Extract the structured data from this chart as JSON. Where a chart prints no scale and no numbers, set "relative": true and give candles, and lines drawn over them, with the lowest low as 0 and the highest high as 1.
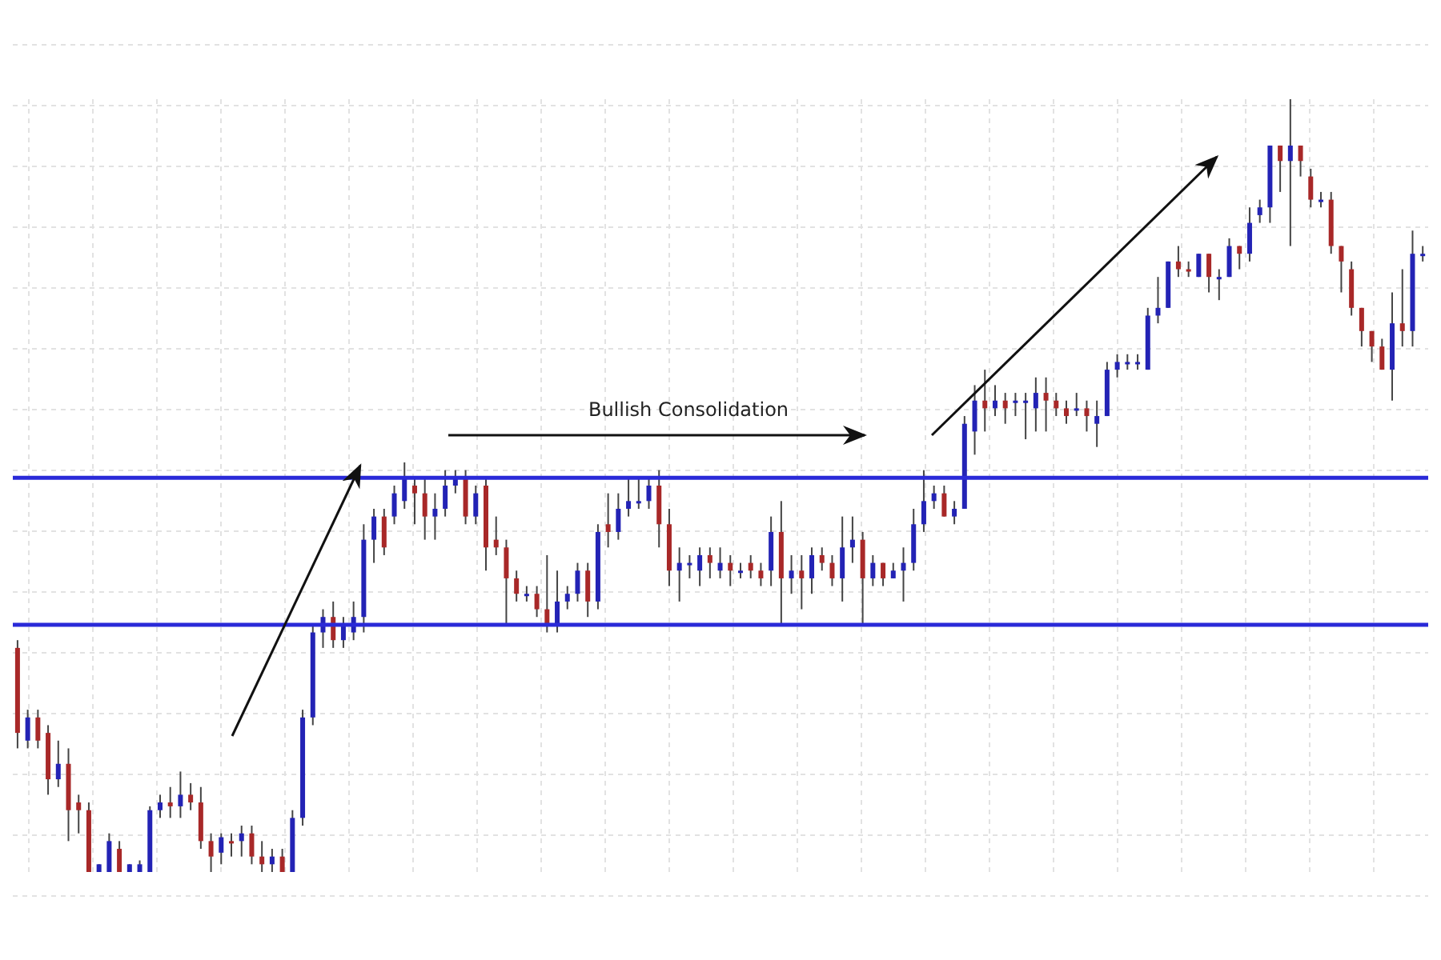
{
  "chart_data": {
    "type": "candlestick",
    "relative": true,
    "grid": true,
    "tick_labels": false,
    "annotations": [
      "Bullish Consolidation"
    ],
    "ref_lines": [
      {
        "axis": "y",
        "value": 0.51,
        "color": "#2a2ad8"
      },
      {
        "axis": "y",
        "value": 0.32,
        "color": "#2a2ad8"
      }
    ],
    "categories": [
      null,
      null,
      null,
      null,
      null,
      null,
      null,
      null,
      null,
      null,
      null,
      null,
      null,
      null,
      null,
      null,
      null,
      null,
      null,
      null,
      null,
      null,
      null,
      null,
      null,
      null,
      null,
      null,
      null,
      null,
      null,
      null,
      null,
      null,
      null,
      null,
      null,
      null,
      null,
      null,
      null,
      null,
      null,
      null,
      null,
      null,
      null,
      null,
      null,
      null,
      null,
      null,
      null,
      null,
      null,
      null,
      null,
      null,
      null,
      null,
      null,
      null,
      null,
      null,
      null,
      null,
      null,
      null,
      null,
      null,
      null,
      null,
      null,
      null,
      null,
      null,
      null,
      null,
      null,
      null,
      null,
      null,
      null,
      null,
      null,
      null,
      null,
      null,
      null,
      null,
      null,
      null,
      null,
      null,
      null,
      null,
      null,
      null,
      null,
      null,
      null,
      null,
      null,
      null,
      null,
      null,
      null,
      null,
      null,
      null,
      null,
      null,
      null,
      null,
      null,
      null,
      null,
      null,
      null,
      null,
      null,
      null,
      null,
      null,
      null,
      null,
      null,
      null,
      null,
      null,
      null,
      null,
      null,
      null,
      null,
      null,
      null,
      null,
      null
    ],
    "ohlc": [
      [
        0.29,
        0.3,
        0.16,
        0.18
      ],
      [
        0.17,
        0.21,
        0.16,
        0.2
      ],
      [
        0.2,
        0.21,
        0.16,
        0.17
      ],
      [
        0.18,
        0.19,
        0.1,
        0.12
      ],
      [
        0.12,
        0.17,
        0.11,
        0.14
      ],
      [
        0.14,
        0.16,
        0.04,
        0.08
      ],
      [
        0.09,
        0.1,
        0.05,
        0.08
      ],
      [
        0.08,
        0.09,
        0,
        0
      ],
      [
        0,
        0.01,
        0,
        0.01
      ],
      [
        0,
        0.05,
        0,
        0.04
      ],
      [
        0.03,
        0.04,
        0,
        0
      ],
      [
        0,
        0.01,
        0,
        0.01
      ],
      [
        0,
        0.015,
        0,
        0.01
      ],
      [
        0,
        0.085,
        0,
        0.08
      ],
      [
        0.08,
        0.1,
        0.07,
        0.09
      ],
      [
        0.09,
        0.11,
        0.07,
        0.085
      ],
      [
        0.085,
        0.13,
        0.07,
        0.1
      ],
      [
        0.1,
        0.115,
        0.08,
        0.09
      ],
      [
        0.09,
        0.11,
        0.03,
        0.04
      ],
      [
        0.04,
        0.05,
        0,
        0.02
      ],
      [
        0.025,
        0.05,
        0.01,
        0.045
      ],
      [
        0.04,
        0.05,
        0.02,
        0.04
      ],
      [
        0.04,
        0.06,
        0.02,
        0.05
      ],
      [
        0.05,
        0.06,
        0.01,
        0.02
      ],
      [
        0.02,
        0.04,
        0,
        0.01
      ],
      [
        0.01,
        0.03,
        0,
        0.02
      ],
      [
        0.02,
        0.03,
        0,
        0
      ],
      [
        0,
        0.08,
        0,
        0.07
      ],
      [
        0.07,
        0.21,
        0.06,
        0.2
      ],
      [
        0.2,
        0.32,
        0.19,
        0.31
      ],
      [
        0.31,
        0.34,
        0.29,
        0.33
      ],
      [
        0.33,
        0.35,
        0.29,
        0.3
      ],
      [
        0.3,
        0.33,
        0.29,
        0.32
      ],
      [
        0.31,
        0.35,
        0.3,
        0.33
      ],
      [
        0.33,
        0.45,
        0.31,
        0.43
      ],
      [
        0.43,
        0.47,
        0.4,
        0.46
      ],
      [
        0.46,
        0.47,
        0.41,
        0.42
      ],
      [
        0.46,
        0.5,
        0.45,
        0.49
      ],
      [
        0.48,
        0.53,
        0.47,
        0.51
      ],
      [
        0.5,
        0.51,
        0.45,
        0.49
      ],
      [
        0.49,
        0.51,
        0.43,
        0.46
      ],
      [
        0.46,
        0.49,
        0.43,
        0.47
      ],
      [
        0.47,
        0.52,
        0.46,
        0.5
      ],
      [
        0.5,
        0.52,
        0.49,
        0.51
      ],
      [
        0.51,
        0.52,
        0.45,
        0.46
      ],
      [
        0.46,
        0.5,
        0.45,
        0.49
      ],
      [
        0.5,
        0.51,
        0.39,
        0.42
      ],
      [
        0.43,
        0.46,
        0.41,
        0.42
      ],
      [
        0.42,
        0.43,
        0.32,
        0.38
      ],
      [
        0.38,
        0.39,
        0.35,
        0.36
      ],
      [
        0.36,
        0.37,
        0.35,
        0.36
      ],
      [
        0.36,
        0.37,
        0.33,
        0.34
      ],
      [
        0.34,
        0.41,
        0.31,
        0.32
      ],
      [
        0.32,
        0.39,
        0.31,
        0.35
      ],
      [
        0.35,
        0.37,
        0.34,
        0.36
      ],
      [
        0.36,
        0.4,
        0.35,
        0.39
      ],
      [
        0.39,
        0.4,
        0.33,
        0.35
      ],
      [
        0.35,
        0.45,
        0.34,
        0.44
      ],
      [
        0.45,
        0.49,
        0.42,
        0.44
      ],
      [
        0.44,
        0.49,
        0.43,
        0.47
      ],
      [
        0.47,
        0.51,
        0.46,
        0.48
      ],
      [
        0.48,
        0.51,
        0.47,
        0.48
      ],
      [
        0.48,
        0.51,
        0.47,
        0.5
      ],
      [
        0.5,
        0.52,
        0.42,
        0.45
      ],
      [
        0.45,
        0.47,
        0.37,
        0.39
      ],
      [
        0.39,
        0.42,
        0.35,
        0.4
      ],
      [
        0.4,
        0.41,
        0.38,
        0.4
      ],
      [
        0.39,
        0.42,
        0.37,
        0.41
      ],
      [
        0.41,
        0.42,
        0.38,
        0.4
      ],
      [
        0.39,
        0.42,
        0.38,
        0.4
      ],
      [
        0.4,
        0.41,
        0.37,
        0.39
      ],
      [
        0.39,
        0.4,
        0.38,
        0.39
      ],
      [
        0.4,
        0.41,
        0.38,
        0.39
      ],
      [
        0.39,
        0.4,
        0.37,
        0.38
      ],
      [
        0.39,
        0.46,
        0.37,
        0.44
      ],
      [
        0.44,
        0.48,
        0.32,
        0.38
      ],
      [
        0.38,
        0.41,
        0.36,
        0.39
      ],
      [
        0.39,
        0.41,
        0.34,
        0.38
      ],
      [
        0.38,
        0.42,
        0.36,
        0.41
      ],
      [
        0.41,
        0.42,
        0.39,
        0.4
      ],
      [
        0.4,
        0.41,
        0.37,
        0.38
      ],
      [
        0.38,
        0.46,
        0.35,
        0.42
      ],
      [
        0.42,
        0.46,
        0.4,
        0.43
      ],
      [
        0.43,
        0.44,
        0.32,
        0.38
      ],
      [
        0.38,
        0.41,
        0.37,
        0.4
      ],
      [
        0.4,
        0.4,
        0.37,
        0.38
      ],
      [
        0.38,
        0.4,
        0.38,
        0.39
      ],
      [
        0.39,
        0.42,
        0.35,
        0.4
      ],
      [
        0.4,
        0.47,
        0.39,
        0.45
      ],
      [
        0.45,
        0.52,
        0.44,
        0.48
      ],
      [
        0.48,
        0.5,
        0.47,
        0.49
      ],
      [
        0.49,
        0.5,
        0.46,
        0.46
      ],
      [
        0.46,
        0.48,
        0.45,
        0.47
      ],
      [
        0.47,
        0.59,
        0.47,
        0.58
      ],
      [
        0.57,
        0.63,
        0.54,
        0.61
      ],
      [
        0.61,
        0.65,
        0.57,
        0.6
      ],
      [
        0.6,
        0.63,
        0.59,
        0.61
      ],
      [
        0.61,
        0.62,
        0.58,
        0.6
      ],
      [
        0.61,
        0.62,
        0.59,
        0.61
      ],
      [
        0.61,
        0.62,
        0.56,
        0.61
      ],
      [
        0.6,
        0.64,
        0.57,
        0.62
      ],
      [
        0.62,
        0.64,
        0.57,
        0.61
      ],
      [
        0.61,
        0.62,
        0.59,
        0.6
      ],
      [
        0.6,
        0.61,
        0.58,
        0.59
      ],
      [
        0.6,
        0.62,
        0.59,
        0.6
      ],
      [
        0.6,
        0.61,
        0.57,
        0.59
      ],
      [
        0.58,
        0.61,
        0.55,
        0.59
      ],
      [
        0.59,
        0.66,
        0.59,
        0.65
      ],
      [
        0.65,
        0.67,
        0.64,
        0.66
      ],
      [
        0.66,
        0.67,
        0.65,
        0.66
      ],
      [
        0.66,
        0.67,
        0.65,
        0.66
      ],
      [
        0.65,
        0.73,
        0.65,
        0.72
      ],
      [
        0.72,
        0.77,
        0.71,
        0.73
      ],
      [
        0.73,
        0.79,
        0.73,
        0.79
      ],
      [
        0.79,
        0.81,
        0.77,
        0.78
      ],
      [
        0.78,
        0.79,
        0.77,
        0.78
      ],
      [
        0.77,
        0.8,
        0.77,
        0.8
      ],
      [
        0.8,
        0.8,
        0.75,
        0.77
      ],
      [
        0.77,
        0.78,
        0.74,
        0.77
      ],
      [
        0.77,
        0.82,
        0.77,
        0.81
      ],
      [
        0.81,
        0.81,
        0.78,
        0.8
      ],
      [
        0.8,
        0.86,
        0.79,
        0.84
      ],
      [
        0.85,
        0.87,
        0.84,
        0.86
      ],
      [
        0.86,
        0.94,
        0.84,
        0.94
      ],
      [
        0.94,
        0.94,
        0.88,
        0.92
      ],
      [
        0.92,
        1,
        0.81,
        0.94
      ],
      [
        0.94,
        0.94,
        0.9,
        0.92
      ],
      [
        0.9,
        0.91,
        0.86,
        0.87
      ],
      [
        0.87,
        0.88,
        0.86,
        0.87
      ],
      [
        0.87,
        0.88,
        0.8,
        0.81
      ],
      [
        0.81,
        0.81,
        0.75,
        0.79
      ],
      [
        0.78,
        0.79,
        0.72,
        0.73
      ],
      [
        0.73,
        0.73,
        0.68,
        0.7
      ],
      [
        0.7,
        0.7,
        0.66,
        0.68
      ],
      [
        0.68,
        0.69,
        0.65,
        0.65
      ],
      [
        0.65,
        0.75,
        0.61,
        0.71
      ],
      [
        0.71,
        0.78,
        0.68,
        0.7
      ],
      [
        0.7,
        0.83,
        0.68,
        0.8
      ],
      [
        0.8,
        0.81,
        0.79,
        0.8
      ]
    ],
    "colors": [
      "#a82828",
      "#2323b5",
      "#a82828",
      "#a82828",
      "#2323b5",
      "#a82828",
      "#a82828",
      "#a82828",
      "#2323b5",
      "#2323b5",
      "#a82828",
      "#2323b5",
      "#2323b5",
      "#2323b5",
      "#2323b5",
      "#a82828",
      "#2323b5",
      "#a82828",
      "#a82828",
      "#a82828",
      "#2323b5",
      "#a82828",
      "#2323b5",
      "#a82828",
      "#a82828",
      "#2323b5",
      "#a82828",
      "#2323b5",
      "#2323b5",
      "#2323b5",
      "#2323b5",
      "#a82828",
      "#2323b5",
      "#2323b5",
      "#2323b5",
      "#2323b5",
      "#a82828",
      "#2323b5",
      "#2323b5",
      "#a82828",
      "#a82828",
      "#2323b5",
      "#2323b5",
      "#2323b5",
      "#a82828",
      "#2323b5",
      "#a82828",
      "#a82828",
      "#a82828",
      "#a82828",
      "#2323b5",
      "#a82828",
      "#a82828",
      "#2323b5",
      "#2323b5",
      "#2323b5",
      "#a82828",
      "#2323b5",
      "#a82828",
      "#2323b5",
      "#2323b5",
      "#2323b5",
      "#2323b5",
      "#a82828",
      "#a82828",
      "#2323b5",
      "#2323b5",
      "#2323b5",
      "#a82828",
      "#2323b5",
      "#a82828",
      "#2323b5",
      "#a82828",
      "#a82828",
      "#2323b5",
      "#a82828",
      "#2323b5",
      "#a82828",
      "#2323b5",
      "#a82828",
      "#a82828",
      "#2323b5",
      "#2323b5",
      "#a82828",
      "#2323b5",
      "#a82828",
      "#2323b5",
      "#2323b5",
      "#2323b5",
      "#2323b5",
      "#2323b5",
      "#a82828",
      "#2323b5",
      "#2323b5",
      "#2323b5",
      "#a82828",
      "#2323b5",
      "#a82828",
      "#2323b5",
      "#2323b5",
      "#2323b5",
      "#a82828",
      "#a82828",
      "#a82828",
      "#2323b5",
      "#a82828",
      "#2323b5",
      "#2323b5",
      "#2323b5",
      "#2323b5",
      "#2323b5",
      "#2323b5",
      "#2323b5",
      "#2323b5",
      "#a82828",
      "#a82828",
      "#2323b5",
      "#a82828",
      "#2323b5",
      "#2323b5",
      "#a82828",
      "#2323b5",
      "#2323b5",
      "#2323b5",
      "#a82828",
      "#2323b5",
      "#a82828",
      "#a82828",
      "#2323b5",
      "#a82828",
      "#a82828",
      "#a82828",
      "#a82828",
      "#a82828",
      "#a82828",
      "#2323b5",
      "#a82828",
      "#2323b5",
      "#2323b5"
    ]
  }
}
